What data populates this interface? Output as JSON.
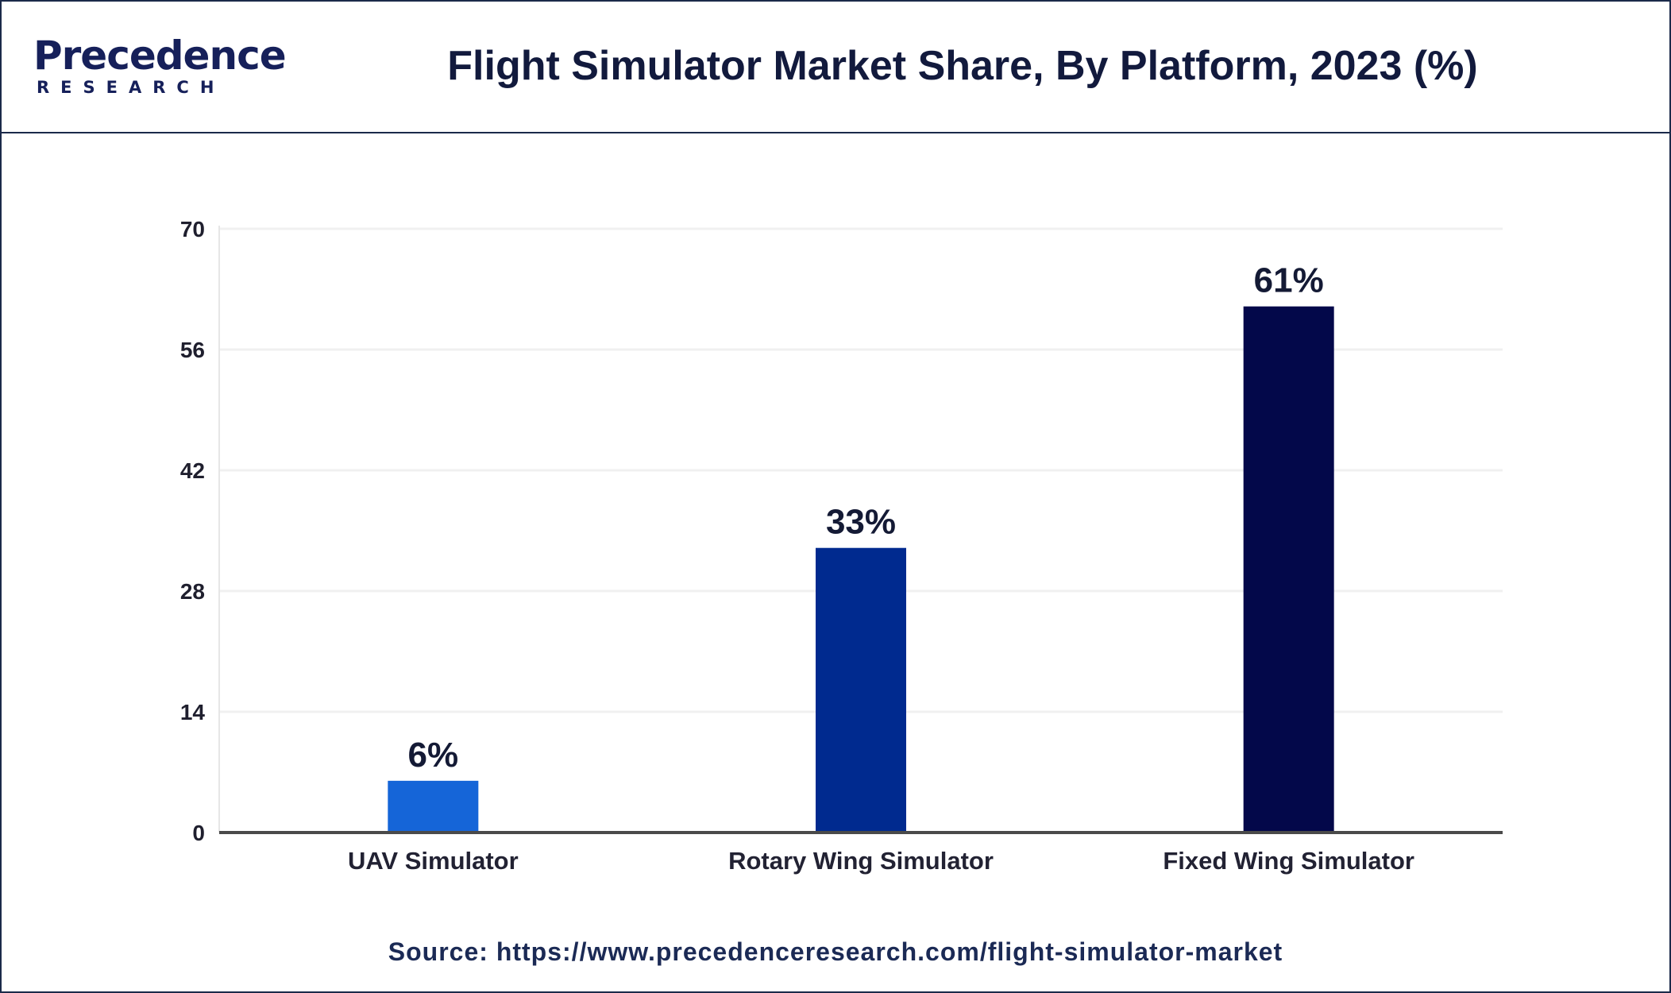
{
  "logo": {
    "top": "Precedence",
    "bottom": "RESEARCH"
  },
  "header": {
    "title": "Flight Simulator Market Share, By Platform, 2023 (%)"
  },
  "source": {
    "label": "Source:",
    "url": "https://www.precedenceresearch.com/flight-simulator-market"
  },
  "colors": {
    "bar_1": "#1565d8",
    "bar_2": "#002a8f",
    "bar_3": "#03084a",
    "axis": "#4a4a4a",
    "grid": "#f0f0f0",
    "text": "#1f1f2e"
  },
  "chart_data": {
    "type": "bar",
    "categories": [
      "UAV Simulator",
      "Rotary Wing Simulator",
      "Fixed Wing Simulator"
    ],
    "values": [
      6,
      33,
      61
    ],
    "data_labels": [
      "6%",
      "33%",
      "61%"
    ],
    "title": "Flight Simulator Market Share, By Platform, 2023 (%)",
    "xlabel": "",
    "ylabel": "",
    "ylim": [
      0,
      70
    ],
    "yticks": [
      0,
      14,
      28,
      42,
      56,
      70
    ],
    "grid": true,
    "legend": "none"
  }
}
